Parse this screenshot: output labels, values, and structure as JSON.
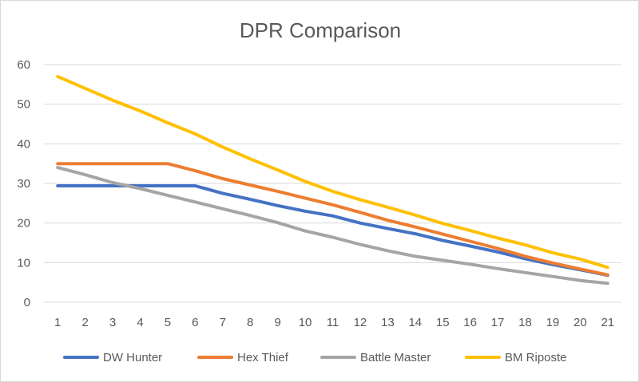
{
  "chart_data": {
    "type": "line",
    "title": "DPR Comparison",
    "xlabel": "",
    "ylabel": "",
    "x": [
      "1",
      "2",
      "3",
      "4",
      "5",
      "6",
      "7",
      "8",
      "9",
      "10",
      "11",
      "12",
      "13",
      "14",
      "15",
      "16",
      "17",
      "18",
      "19",
      "20",
      "21"
    ],
    "yticks": [
      0,
      10,
      20,
      30,
      40,
      50,
      60
    ],
    "ylim": [
      0,
      60
    ],
    "grid": true,
    "legend_position": "bottom",
    "series": [
      {
        "name": "DW Hunter",
        "color": "#4472c4",
        "values": [
          29.4,
          29.4,
          29.4,
          29.4,
          29.4,
          29.4,
          27.5,
          26.0,
          24.4,
          23.0,
          21.8,
          20.0,
          18.6,
          17.3,
          15.6,
          14.2,
          12.7,
          11.0,
          9.5,
          8.2,
          6.8
        ]
      },
      {
        "name": "Hex Thief",
        "color": "#ed7d31",
        "values": [
          35.0,
          35.0,
          35.0,
          35.0,
          35.0,
          33.2,
          31.2,
          29.6,
          28.0,
          26.3,
          24.6,
          22.7,
          20.7,
          19.0,
          17.2,
          15.4,
          13.6,
          11.6,
          9.9,
          8.4,
          6.9
        ]
      },
      {
        "name": "Battle Master",
        "color": "#a5a5a5",
        "values": [
          34.0,
          32.2,
          30.2,
          28.7,
          27.0,
          25.3,
          23.6,
          21.9,
          20.1,
          18.0,
          16.4,
          14.6,
          13.0,
          11.6,
          10.6,
          9.6,
          8.5,
          7.5,
          6.5,
          5.5,
          4.8
        ]
      },
      {
        "name": "BM Riposte",
        "color": "#ffc000",
        "values": [
          57.0,
          54.0,
          51.0,
          48.3,
          45.3,
          42.5,
          39.2,
          36.2,
          33.4,
          30.5,
          28.0,
          25.9,
          24.0,
          22.0,
          19.9,
          18.1,
          16.2,
          14.5,
          12.5,
          10.9,
          8.8
        ]
      }
    ]
  }
}
